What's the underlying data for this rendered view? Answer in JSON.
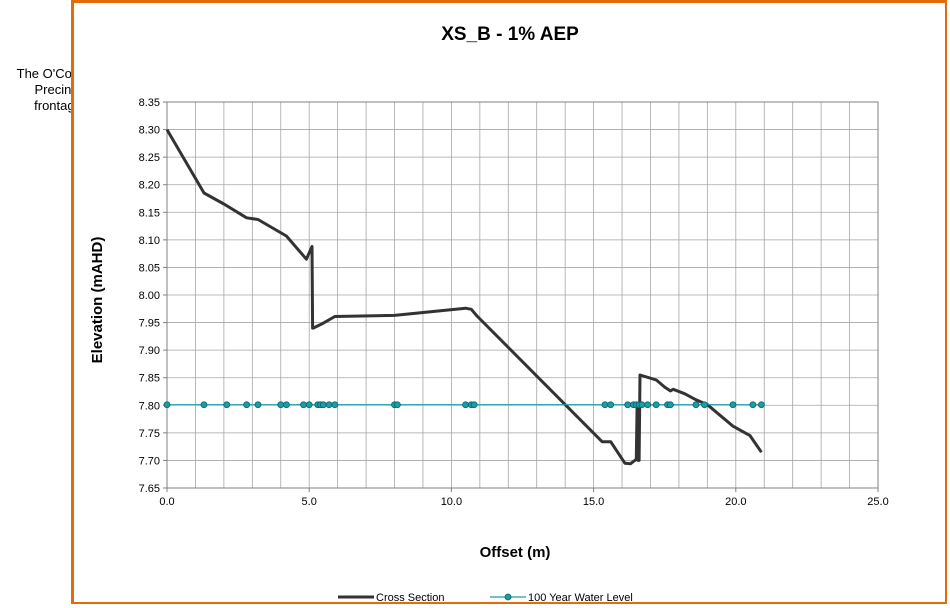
{
  "side_note": "The O'Connell\nPrecinct\nfrontage",
  "chart_data": {
    "type": "line",
    "title": "XS_B - 1% AEP",
    "xlabel": "Offset (m)",
    "ylabel": "Elevation (mAHD)",
    "xlim": [
      0,
      25
    ],
    "ylim": [
      7.65,
      8.35
    ],
    "x_ticks": [
      "0.0",
      "5.0",
      "10.0",
      "15.0",
      "20.0",
      "25.0"
    ],
    "x_tick_values": [
      0,
      5,
      10,
      15,
      20,
      25
    ],
    "x_minor_step": 1,
    "y_ticks": [
      "7.65",
      "7.70",
      "7.75",
      "7.80",
      "7.85",
      "7.90",
      "7.95",
      "8.00",
      "8.05",
      "8.10",
      "8.15",
      "8.20",
      "8.25",
      "8.30",
      "8.35"
    ],
    "y_tick_values": [
      7.65,
      7.7,
      7.75,
      7.8,
      7.85,
      7.9,
      7.95,
      8.0,
      8.05,
      8.1,
      8.15,
      8.2,
      8.25,
      8.3,
      8.35
    ],
    "grid": true,
    "legend_position": "bottom",
    "series": [
      {
        "name": "Cross Section",
        "color": "#333333",
        "marker": "none",
        "x": [
          0.0,
          1.3,
          2.0,
          2.8,
          3.2,
          4.2,
          4.9,
          5.1,
          5.12,
          5.14,
          5.5,
          5.9,
          8.0,
          10.5,
          10.7,
          10.9,
          15.3,
          15.6,
          16.1,
          16.3,
          16.5,
          16.53,
          16.56,
          16.6,
          16.63,
          17.2,
          17.5,
          17.7,
          17.8,
          18.2,
          18.6,
          19.0,
          19.9,
          20.5,
          20.9
        ],
        "y": [
          8.3,
          8.185,
          8.165,
          8.14,
          8.137,
          8.107,
          8.065,
          8.088,
          7.94,
          7.94,
          7.949,
          7.961,
          7.963,
          7.976,
          7.974,
          7.962,
          7.734,
          7.734,
          7.695,
          7.694,
          7.702,
          7.8,
          7.7,
          7.7,
          7.855,
          7.846,
          7.833,
          7.826,
          7.829,
          7.821,
          7.81,
          7.801,
          7.762,
          7.745,
          7.715
        ]
      },
      {
        "name": "100 Year Water Level",
        "color": "#1b9da8",
        "marker": "circle",
        "x": [
          0.0,
          1.3,
          2.1,
          2.8,
          3.2,
          4.0,
          4.2,
          4.8,
          5.0,
          5.3,
          5.4,
          5.5,
          5.7,
          5.9,
          8.0,
          8.1,
          10.5,
          10.7,
          10.8,
          15.4,
          15.6,
          16.2,
          16.4,
          16.5,
          16.6,
          16.7,
          16.9,
          17.2,
          17.6,
          17.7,
          18.6,
          18.9,
          19.9,
          20.6,
          20.9
        ],
        "y": [
          7.801,
          7.801,
          7.801,
          7.801,
          7.801,
          7.801,
          7.801,
          7.801,
          7.801,
          7.801,
          7.801,
          7.801,
          7.801,
          7.801,
          7.801,
          7.801,
          7.801,
          7.801,
          7.801,
          7.801,
          7.801,
          7.801,
          7.801,
          7.801,
          7.801,
          7.801,
          7.801,
          7.801,
          7.801,
          7.801,
          7.801,
          7.801,
          7.801,
          7.801,
          7.801
        ]
      }
    ]
  }
}
